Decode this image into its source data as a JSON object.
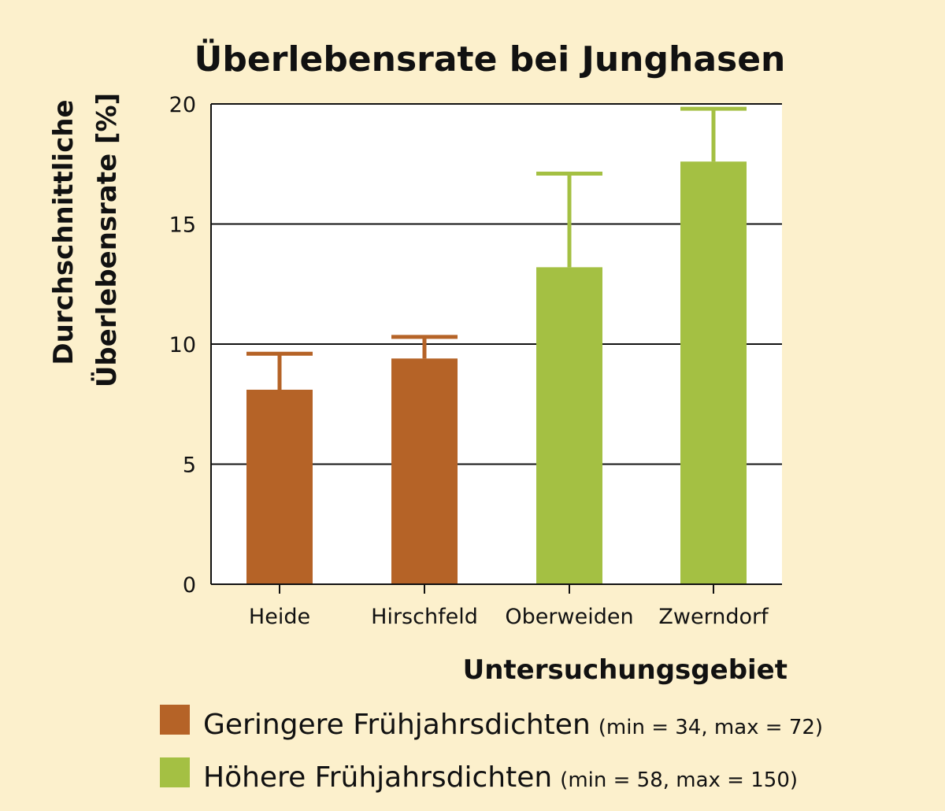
{
  "chart_data": {
    "type": "bar",
    "title": "Überlebensrate bei Junghasen",
    "ylabel_line1": "Durchschnittliche",
    "ylabel_line2": "Überlebensrate [%]",
    "xlabel": "Untersuchungsgebiet",
    "ylim": [
      0,
      20
    ],
    "yticks": [
      "0",
      "5",
      "10",
      "15",
      "20"
    ],
    "grid": true,
    "categories": [
      "Heide",
      "Hirschfeld",
      "Oberweiden",
      "Zwerndorf"
    ],
    "values": [
      8.1,
      9.4,
      13.2,
      17.6
    ],
    "error_upper": [
      9.6,
      10.3,
      17.1,
      19.8
    ],
    "bar_group": [
      0,
      0,
      1,
      1
    ],
    "legend": [
      {
        "name": "Geringere Frühjahrsdichten",
        "detail": "(min = 34, max = 72)",
        "color": "#b56327"
      },
      {
        "name": "Höhere Frühjahrsdichten",
        "detail": "(min = 58, max = 150)",
        "color": "#a4c043"
      }
    ]
  }
}
